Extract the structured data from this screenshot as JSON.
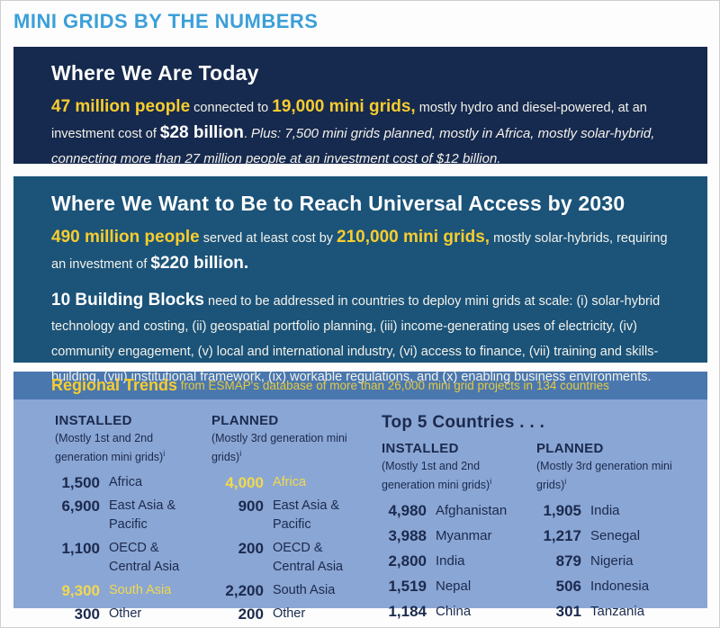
{
  "page": {
    "title": "MINI GRIDS BY THE NUMBERS"
  },
  "today": {
    "heading": "Where We Are Today",
    "paragraph": [
      {
        "text": "47 million people",
        "style": "big-yellow"
      },
      {
        "text": " connected to ",
        "style": "small"
      },
      {
        "text": "19,000 mini grids,",
        "style": "big-yellow"
      },
      {
        "text": " mostly hydro and diesel-powered, at an investment cost of ",
        "style": "small"
      },
      {
        "text": "$28 billion",
        "style": "big-white"
      },
      {
        "text": ". ",
        "style": "small"
      },
      {
        "text": "Plus: 7,500 mini grids planned, mostly in Africa, mostly solar-hybrid, connecting more than 27 million people at an investment cost of $12 billion.",
        "style": "italic"
      }
    ]
  },
  "future": {
    "heading": "Where We Want to Be to Reach Universal Access by 2030",
    "paragraph": [
      {
        "text": "490 million people",
        "style": "big-yellow"
      },
      {
        "text": " served at least cost by ",
        "style": "small"
      },
      {
        "text": "210,000 mini grids,",
        "style": "big-yellow"
      },
      {
        "text": " mostly solar-hybrids, requiring an investment of ",
        "style": "small"
      },
      {
        "text": "$220 billion.",
        "style": "big-white"
      }
    ],
    "building_blocks": [
      {
        "text": "10 Building Blocks",
        "style": "big-white"
      },
      {
        "text": " need to be addressed in countries to deploy mini grids at scale: (i) solar-hybrid technology and costing, (ii) geospatial portfolio planning, (iii) income-generating uses of electricity, (iv) community engagement, (v) local and international industry, (vi) access to finance, (vii) training and skills-building, (viii) institutional framework, (ix) workable regulations, and (x) enabling business environments.",
        "style": "small"
      }
    ]
  },
  "regional": {
    "bar_segments": [
      {
        "text": "Regional Trends",
        "style": "bar-title"
      },
      {
        "text": " from ESMAP's database of more than 26,000 mini grid projects in 134 countries",
        "style": "bar-rest"
      }
    ],
    "installed": {
      "header": "INSTALLED",
      "note": "(Mostly 1st and 2nd generation mini grids)",
      "note_sup": "i",
      "rows": [
        {
          "value": "1,500",
          "label": "Africa",
          "highlight": false
        },
        {
          "value": "6,900",
          "label": "East Asia & Pacific",
          "highlight": false
        },
        {
          "value": "1,100",
          "label": "OECD & Central Asia",
          "highlight": false
        },
        {
          "value": "9,300",
          "label": "South Asia",
          "highlight": true
        },
        {
          "value": "300",
          "label": "Other",
          "highlight": false
        }
      ]
    },
    "planned": {
      "header": "PLANNED",
      "note": "(Mostly 3rd generation mini grids)",
      "note_sup": "i",
      "rows": [
        {
          "value": "4,000",
          "label": "Africa",
          "highlight": true
        },
        {
          "value": "900",
          "label": "East Asia & Pacific",
          "highlight": false
        },
        {
          "value": "200",
          "label": "OECD & Central Asia",
          "highlight": false
        },
        {
          "value": "2,200",
          "label": "South Asia",
          "highlight": false
        },
        {
          "value": "200",
          "label": "Other",
          "highlight": false
        }
      ]
    },
    "top5": {
      "heading": "Top 5 Countries . . .",
      "installed": {
        "header": "INSTALLED",
        "note": "(Mostly 1st and 2nd generation mini grids)",
        "note_sup": "i",
        "rows": [
          {
            "value": "4,980",
            "label": "Afghanistan",
            "highlight": false
          },
          {
            "value": "3,988",
            "label": "Myanmar",
            "highlight": false
          },
          {
            "value": "2,800",
            "label": "India",
            "highlight": false
          },
          {
            "value": "1,519",
            "label": "Nepal",
            "highlight": false
          },
          {
            "value": "1,184",
            "label": "China",
            "highlight": false
          }
        ]
      },
      "planned": {
        "header": "PLANNED",
        "note": "(Mostly 3rd generation mini grids)",
        "note_sup": "i",
        "rows": [
          {
            "value": "1,905",
            "label": "India",
            "highlight": false
          },
          {
            "value": "1,217",
            "label": "Senegal",
            "highlight": false
          },
          {
            "value": "879",
            "label": "Nigeria",
            "highlight": false
          },
          {
            "value": "506",
            "label": "Indonesia",
            "highlight": false
          },
          {
            "value": "301",
            "label": "Tanzania",
            "highlight": false
          }
        ]
      }
    }
  },
  "colors": {
    "title_blue": "#3b9fd8",
    "box_navy": "#16294e",
    "box_steel": "#1b5379",
    "bar_blue": "#4a77ae",
    "body_blue": "#8aa6d4",
    "yellow": "#f7cd2e",
    "highlight_yellow": "#f2d94e",
    "navy_text": "#1b2a4e"
  }
}
